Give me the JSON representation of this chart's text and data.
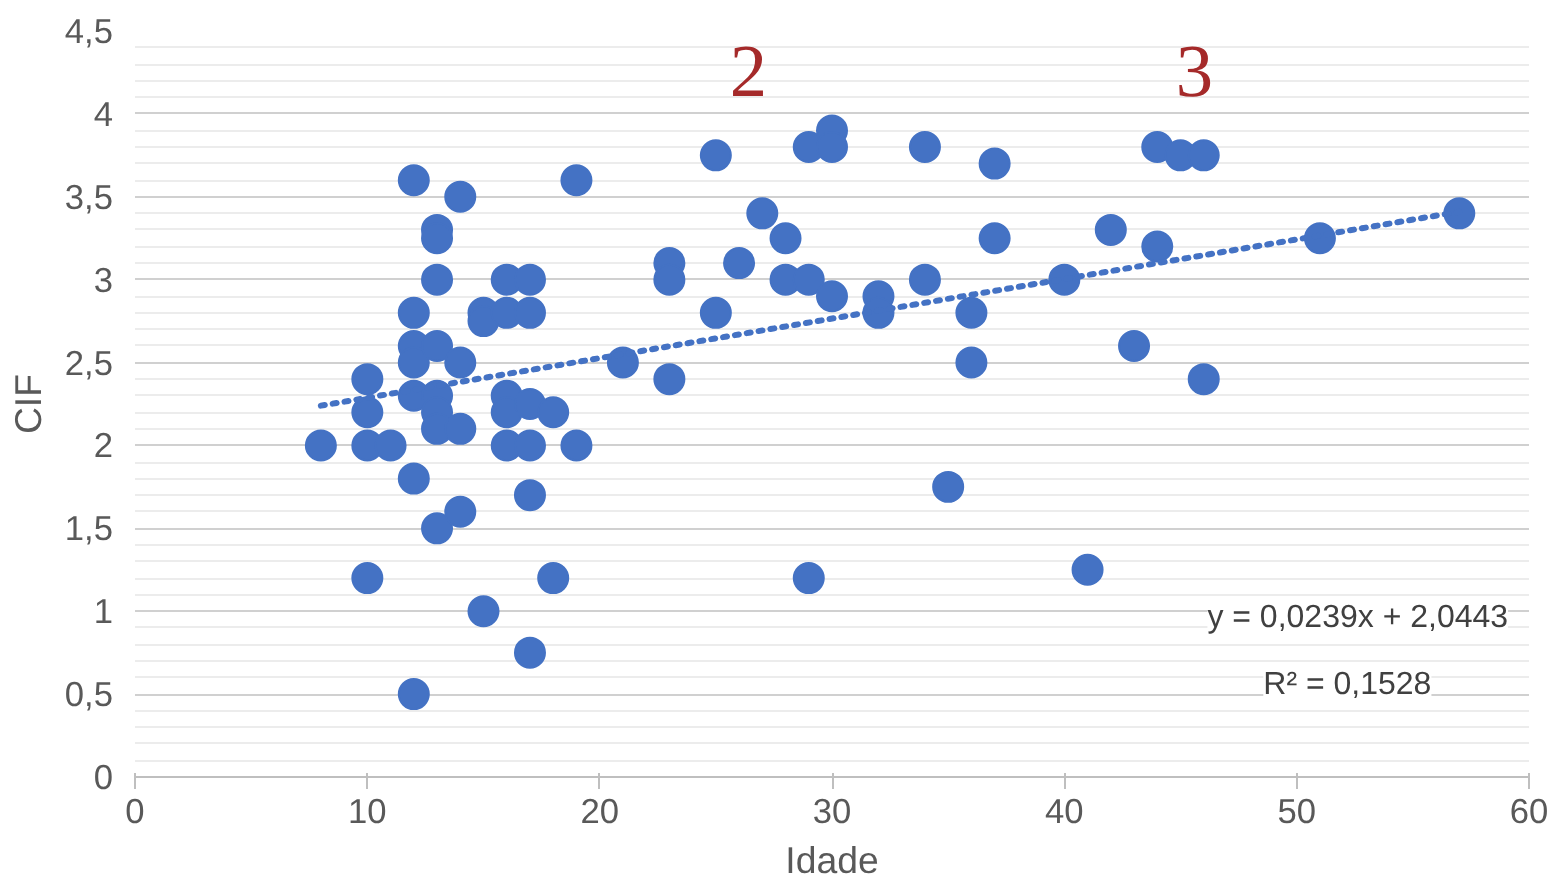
{
  "chart_data": {
    "type": "scatter",
    "xlabel": "Idade",
    "ylabel": "CIF",
    "xlim": [
      0,
      60
    ],
    "xticks": [
      0,
      10,
      20,
      30,
      40,
      50,
      60
    ],
    "ylim": [
      0,
      4.5
    ],
    "yticks": [
      0,
      {
        "value": 0.5,
        "label": "0,5"
      },
      1,
      {
        "value": 1.5,
        "label": "1,5"
      },
      2,
      {
        "value": 2.5,
        "label": "2,5"
      },
      3,
      {
        "value": 3.5,
        "label": "3,5"
      },
      4,
      {
        "value": 4.5,
        "label": "4,5"
      }
    ],
    "grid": "y",
    "marker": "circle",
    "series": [
      {
        "color": "#4472c4",
        "x": [
          8,
          10,
          10,
          10,
          10,
          11,
          12,
          12,
          12,
          12,
          12,
          12,
          12,
          13,
          13,
          13,
          13,
          13,
          13,
          13,
          13,
          14,
          14,
          14,
          14,
          15,
          15,
          15,
          16,
          16,
          16,
          16,
          16,
          17,
          17,
          17,
          17,
          17,
          17,
          18,
          18,
          19,
          19,
          21,
          23,
          23,
          23,
          25,
          25,
          26,
          27,
          28,
          28,
          29,
          29,
          29,
          30,
          30,
          30,
          32,
          32,
          34,
          34,
          35,
          36,
          36,
          37,
          37,
          40,
          41,
          42,
          43,
          44,
          44,
          45,
          46,
          46,
          51,
          57
        ],
        "values": [
          2.0,
          2.4,
          2.2,
          2.0,
          1.2,
          2.0,
          3.6,
          2.8,
          2.6,
          2.5,
          2.3,
          1.8,
          0.5,
          3.3,
          3.25,
          3.0,
          2.6,
          2.3,
          2.2,
          2.1,
          1.5,
          3.5,
          2.5,
          2.1,
          1.6,
          2.8,
          2.75,
          1.0,
          3.0,
          2.8,
          2.3,
          2.2,
          2.0,
          3.0,
          2.8,
          2.25,
          2.0,
          1.7,
          0.75,
          2.2,
          1.2,
          3.6,
          2.0,
          2.5,
          3.1,
          3.0,
          2.4,
          3.75,
          2.8,
          3.1,
          3.4,
          3.25,
          3.0,
          3.8,
          3.0,
          1.2,
          3.9,
          3.8,
          2.9,
          2.9,
          2.8,
          3.8,
          3.0,
          1.75,
          2.8,
          2.5,
          3.7,
          3.25,
          3.0,
          1.25,
          3.3,
          2.6,
          3.8,
          3.2,
          3.75,
          3.75,
          2.4,
          3.25,
          3.4
        ]
      },
      {
        "color": "#4472c4",
        "type": "line",
        "marker": "none",
        "line_style": "dotted",
        "x": [
          8,
          57
        ],
        "values": [
          2.24,
          3.41
        ]
      }
    ],
    "annotations": [
      "2",
      "3",
      "y = 0,0239x + 2,0443",
      "R² = 0,1528"
    ]
  }
}
